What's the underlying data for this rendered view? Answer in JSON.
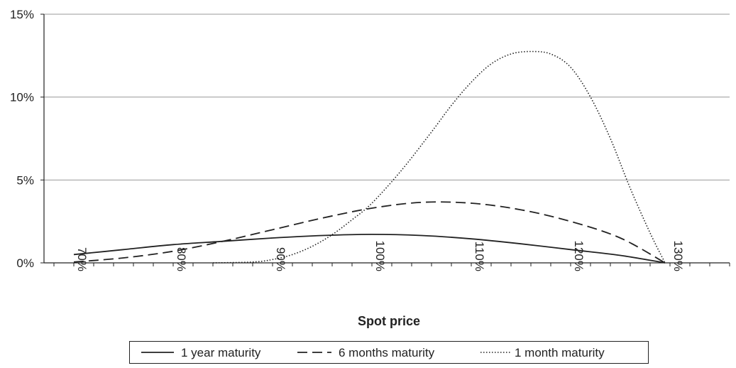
{
  "chart_data": {
    "type": "line",
    "xlabel": "Spot price",
    "ylabel": "",
    "x_ticks": [
      "70%",
      "80%",
      "90%",
      "100%",
      "110%",
      "120%",
      "130%"
    ],
    "y_ticks": [
      "0%",
      "5%",
      "10%",
      "15%"
    ],
    "xlim": [
      67,
      136
    ],
    "ylim": [
      0,
      15
    ],
    "grid": "horizontal",
    "legend_position": "bottom",
    "series": [
      {
        "name": "1 year maturity",
        "style": "solid",
        "x": [
          70,
          75,
          80,
          85,
          90,
          95,
          100,
          105,
          110,
          115,
          120,
          125,
          129.5
        ],
        "values": [
          0.5,
          0.8,
          1.1,
          1.3,
          1.5,
          1.65,
          1.72,
          1.65,
          1.45,
          1.15,
          0.8,
          0.45,
          0.0
        ]
      },
      {
        "name": "6 months maturity",
        "style": "dashed",
        "x": [
          70,
          75,
          80,
          85,
          90,
          95,
          100,
          105,
          110,
          115,
          120,
          125,
          129.5
        ],
        "values": [
          0.05,
          0.3,
          0.7,
          1.3,
          2.0,
          2.7,
          3.3,
          3.65,
          3.6,
          3.2,
          2.5,
          1.5,
          0.0
        ]
      },
      {
        "name": "1 month maturity",
        "style": "dotted",
        "x": [
          84,
          88,
          90,
          92,
          94,
          96,
          98,
          100,
          103,
          106,
          108,
          110,
          112,
          114,
          116,
          118,
          120,
          122,
          124,
          126,
          128,
          129.5
        ],
        "values": [
          0.0,
          0.05,
          0.2,
          0.5,
          1.0,
          1.7,
          2.6,
          3.6,
          5.6,
          7.9,
          9.5,
          10.9,
          12.0,
          12.6,
          12.75,
          12.6,
          11.8,
          10.0,
          7.5,
          4.5,
          1.8,
          0.0
        ]
      }
    ]
  }
}
